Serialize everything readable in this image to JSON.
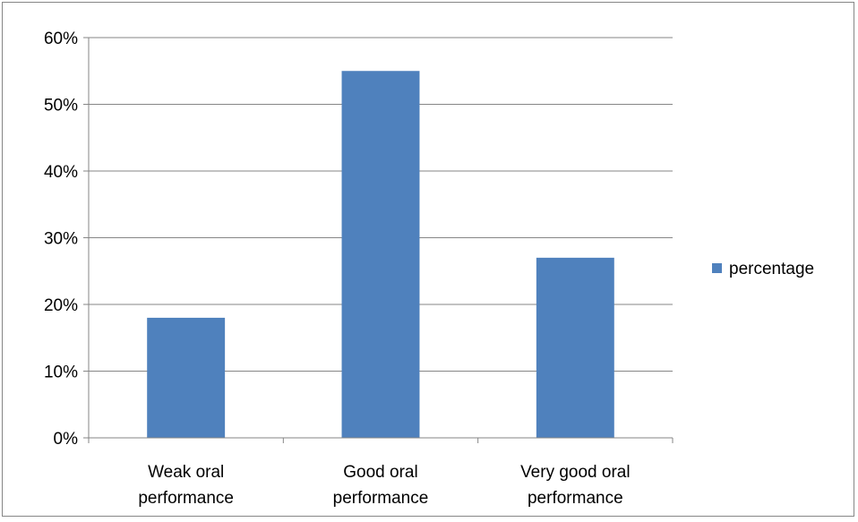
{
  "chart_data": {
    "type": "bar",
    "categories": [
      [
        "Weak oral",
        "performance"
      ],
      [
        "Good oral",
        "performance"
      ],
      [
        "Very good oral",
        "performance"
      ]
    ],
    "series": [
      {
        "name": "percentage",
        "values": [
          18,
          55,
          27
        ]
      }
    ],
    "y_ticks": [
      "0%",
      "10%",
      "20%",
      "30%",
      "40%",
      "50%",
      "60%"
    ],
    "ylim": [
      0,
      60
    ],
    "grid": true,
    "legend_position": "right",
    "colors": {
      "bar": "#4f81bd",
      "grid": "#868686",
      "axis": "#868686"
    }
  }
}
